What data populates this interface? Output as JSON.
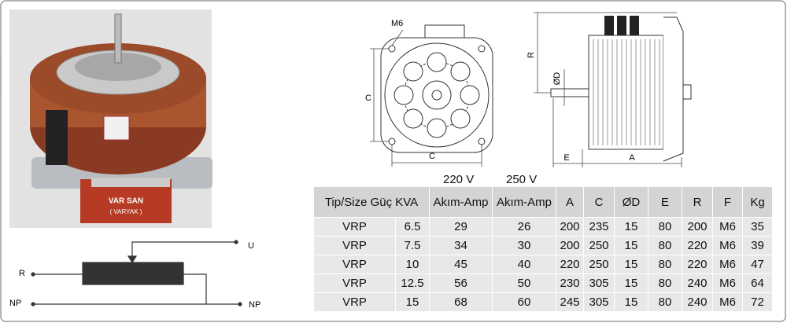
{
  "photo": {
    "labels": [
      "VAR SAN",
      "( VARYAK )"
    ]
  },
  "circuit": {
    "labels": {
      "u": "U",
      "r": "R",
      "np_left": "NP",
      "np_right": "NP"
    }
  },
  "front_view": {
    "labels": {
      "m6": "M6",
      "c_vertical": "C",
      "c_horizontal": "C"
    }
  },
  "side_view": {
    "labels": {
      "r": "R",
      "d": "ØD",
      "e": "E",
      "a": "A"
    }
  },
  "table": {
    "voltage_labels": [
      "220 V",
      "250 V"
    ],
    "header": [
      "Tip/Size Güç KVA",
      "Akım-Amp",
      "Akım-Amp",
      "A",
      "C",
      "ØD",
      "E",
      "R",
      "F",
      "Kg"
    ],
    "rows": [
      [
        "VRP",
        "6.5",
        "29",
        "26",
        "200",
        "235",
        "15",
        "80",
        "200",
        "M6",
        "35"
      ],
      [
        "VRP",
        "7.5",
        "34",
        "30",
        "200",
        "250",
        "15",
        "80",
        "220",
        "M6",
        "39"
      ],
      [
        "VRP",
        "10",
        "45",
        "40",
        "220",
        "250",
        "15",
        "80",
        "220",
        "M6",
        "47"
      ],
      [
        "VRP",
        "12.5",
        "56",
        "50",
        "230",
        "305",
        "15",
        "80",
        "240",
        "M6",
        "64"
      ],
      [
        "VRP",
        "15",
        "68",
        "60",
        "245",
        "305",
        "15",
        "80",
        "240",
        "M6",
        "72"
      ]
    ]
  }
}
